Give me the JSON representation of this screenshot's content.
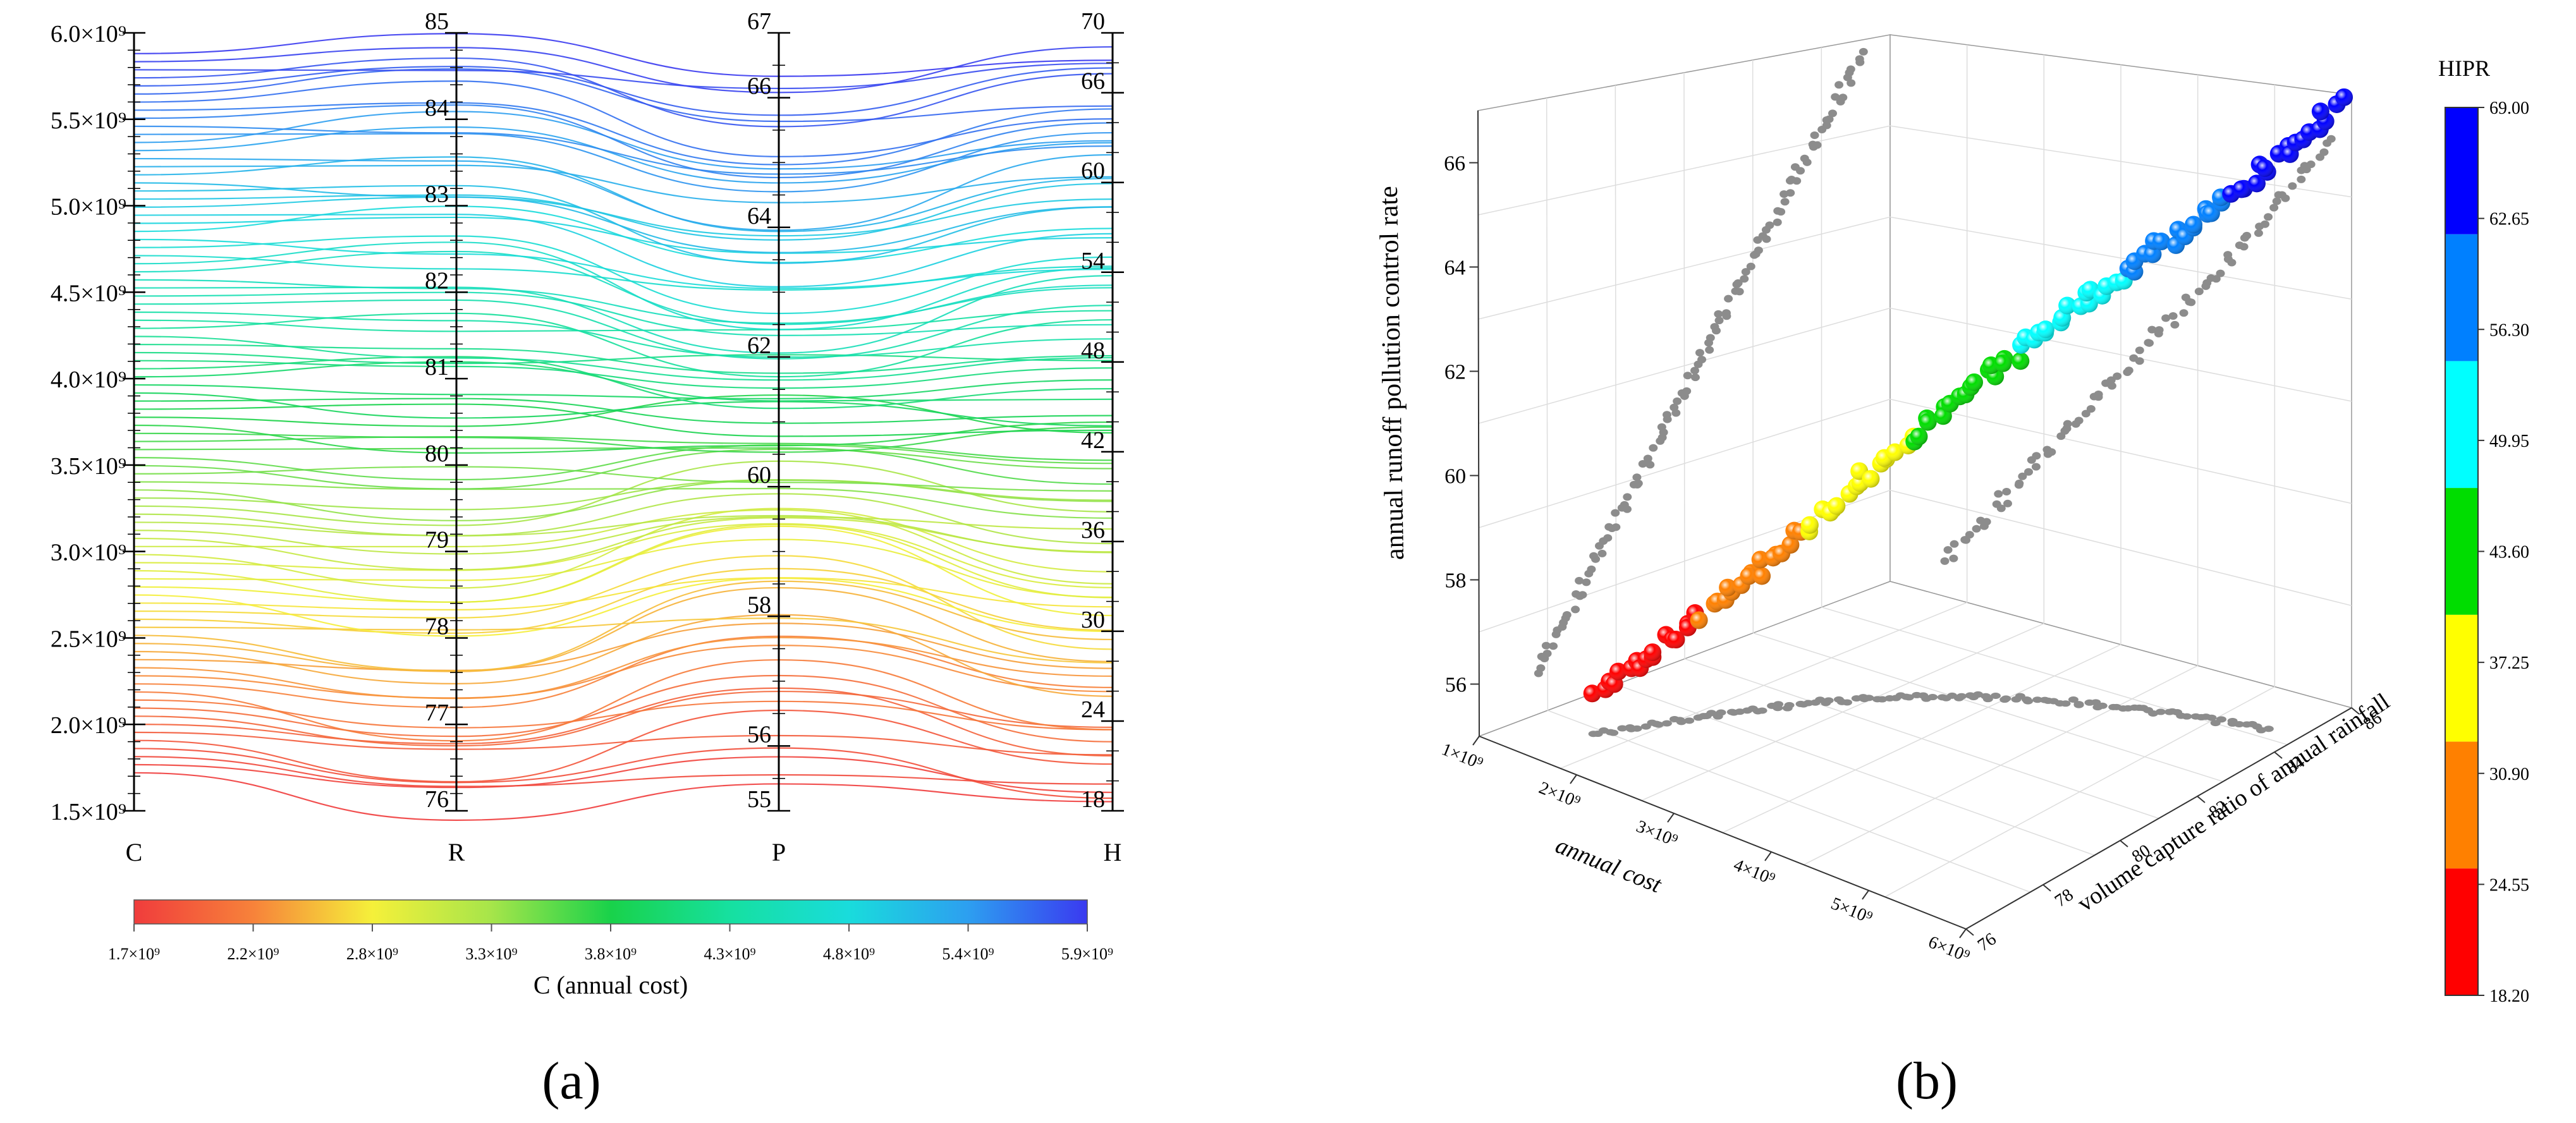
{
  "chart_data": [
    {
      "type": "parallel-coordinates",
      "panel_label": "(a)",
      "axes": [
        {
          "name": "C",
          "range": [
            1500000000,
            6000000000
          ],
          "ticks": [
            "1.5×10⁹",
            "2.0×10⁹",
            "2.5×10⁹",
            "3.0×10⁹",
            "3.5×10⁹",
            "4.0×10⁹",
            "4.5×10⁹",
            "5.0×10⁹",
            "5.5×10⁹",
            "6.0×10⁹"
          ],
          "tick_values": [
            1.5,
            2.0,
            2.5,
            3.0,
            3.5,
            4.0,
            4.5,
            5.0,
            5.5,
            6.0
          ]
        },
        {
          "name": "R",
          "range": [
            76,
            85
          ],
          "ticks": [
            "76",
            "77",
            "78",
            "79",
            "80",
            "81",
            "82",
            "83",
            "84",
            "85"
          ],
          "tick_values": [
            76,
            77,
            78,
            79,
            80,
            81,
            82,
            83,
            84,
            85
          ]
        },
        {
          "name": "P",
          "range": [
            55,
            67
          ],
          "ticks": [
            "55",
            "56",
            "58",
            "60",
            "62",
            "64",
            "66",
            "67"
          ],
          "tick_values": [
            55,
            56,
            58,
            60,
            62,
            64,
            66,
            67
          ]
        },
        {
          "name": "H",
          "range": [
            18,
            70
          ],
          "ticks": [
            "18",
            "24",
            "30",
            "36",
            "42",
            "48",
            "54",
            "60",
            "66",
            "70"
          ],
          "tick_values": [
            18,
            24,
            30,
            36,
            42,
            48,
            54,
            60,
            66,
            70
          ]
        }
      ],
      "line_count": 90,
      "c_range": [
        1720000000,
        5880000000
      ],
      "colorbar": {
        "label": "C (annual cost)",
        "range": [
          1700000000,
          5900000000
        ],
        "ticks": [
          "1.7×10⁹",
          "2.2×10⁹",
          "2.8×10⁹",
          "3.3×10⁹",
          "3.8×10⁹",
          "4.3×10⁹",
          "4.8×10⁹",
          "5.4×10⁹",
          "5.9×10⁹"
        ],
        "colors": [
          "#f03c3c",
          "#f7823a",
          "#f5f03a",
          "#a6e54a",
          "#19d24a",
          "#16e0a0",
          "#19dcdc",
          "#2d9ff0",
          "#3a3af0"
        ]
      }
    },
    {
      "type": "scatter3d",
      "panel_label": "(b)",
      "zlabel": "annual runoff pollution control rate",
      "xlabel": "annual cost",
      "ylabel": "volume capture ratio of annual rainfall",
      "z_ticks": [
        "56",
        "58",
        "60",
        "62",
        "64",
        "66"
      ],
      "x_ticks": [
        "1×10⁹",
        "2×10⁹",
        "3×10⁹",
        "4×10⁹",
        "5×10⁹",
        "6×10⁹"
      ],
      "y_ticks": [
        "76",
        "78",
        "80",
        "82",
        "84",
        "86"
      ],
      "xlim": [
        1000000000,
        6000000000
      ],
      "ylim": [
        76,
        86
      ],
      "zlim": [
        55,
        67
      ],
      "legend_title": "HIPR",
      "legend_levels": [
        "18.20",
        "24.55",
        "30.90",
        "37.25",
        "43.60",
        "49.95",
        "56.30",
        "62.65",
        "69.00"
      ],
      "legend_colors": [
        "#ff0000",
        "#ff8000",
        "#ffff00",
        "#00dd00",
        "#00ffff",
        "#0080ff",
        "#0000ff"
      ]
    }
  ]
}
